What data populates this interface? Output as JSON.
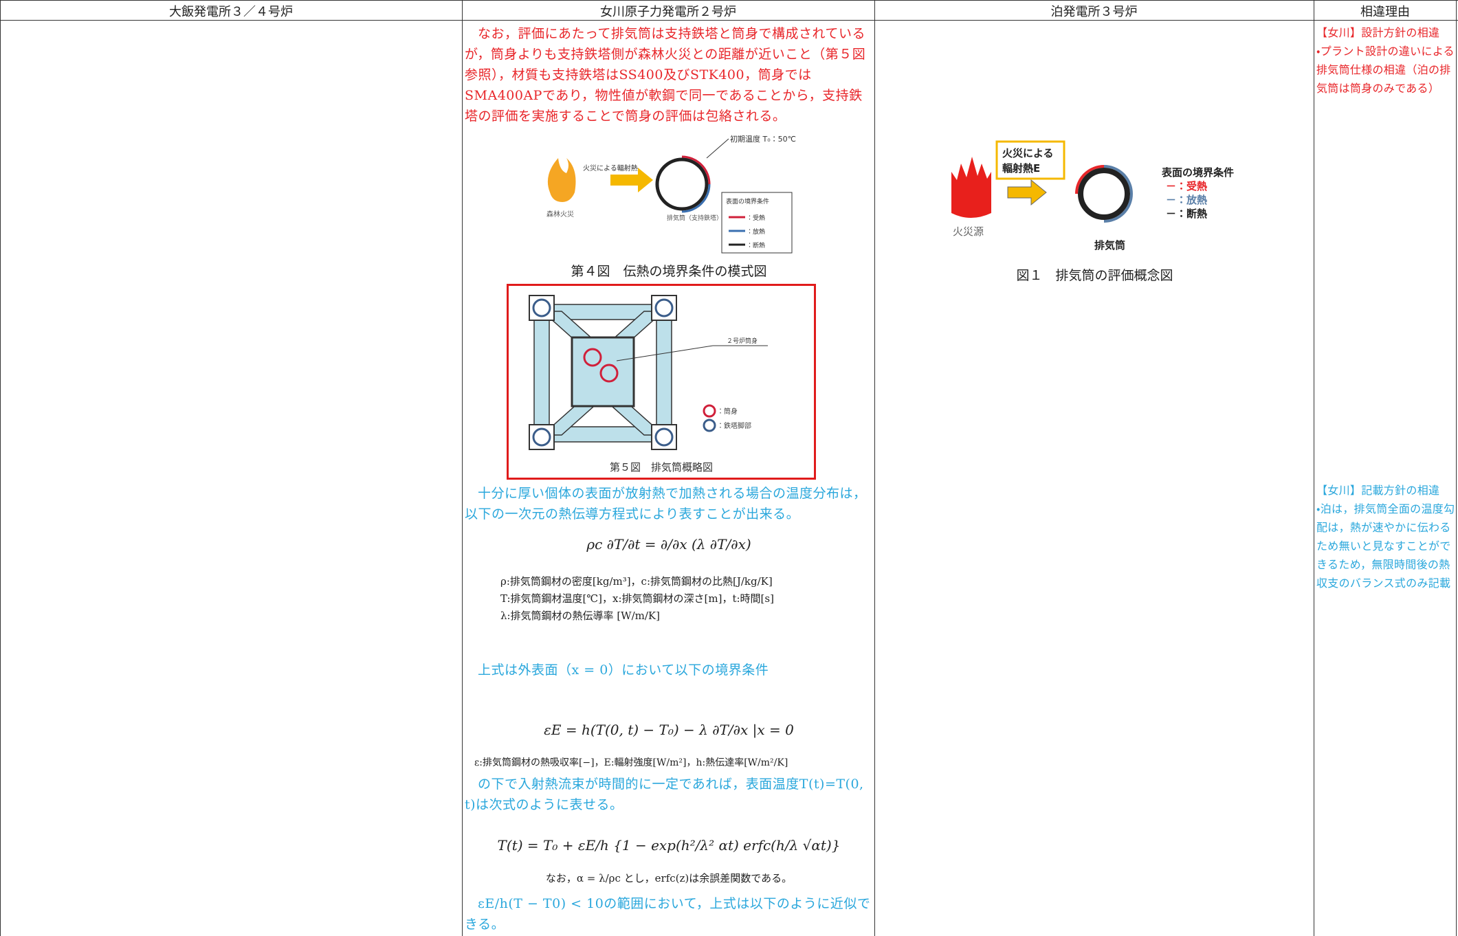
{
  "table": {
    "headers": [
      "大飯発電所３／４号炉",
      "女川原子力発電所２号炉",
      "泊発電所３号炉",
      "相違理由"
    ]
  },
  "onagawa": {
    "paragraph_1": "なお，評価にあたって排気筒は支持鉄塔と筒身で構成されているが，筒身よりも支持鉄塔側が森林火災との距離が近いこと（第５図参照），材質も支持鉄塔はSS400及びSTK400，筒身ではSMA400APであり，物性値が軟鋼で同一であることから，支持鉄塔の評価を実施することで筒身の評価は包絡される。",
    "figure_4": {
      "heat_label": "火災による輻射熱",
      "initial_temp": "初期温度 T₀：50℃",
      "fire_label": "森林火災",
      "stack_label": "排気筒（支持鉄塔）",
      "legend_title": "表面の境界条件",
      "legend": [
        "：受熱",
        "：放熱",
        "：断熱"
      ],
      "caption": "第４図　伝熱の境界条件の模式図"
    },
    "figure_5": {
      "stack_label": "２号炉筒身",
      "legend": [
        "：筒身",
        "：鉄塔脚部"
      ],
      "caption": "第５図　排気筒概略図"
    },
    "paragraph_2": "十分に厚い個体の表面が放射熱で加熱される場合の温度分布は，以下の一次元の熱伝導方程式により表すことが出来る。",
    "equation_1": "ρc ∂T/∂t = ∂/∂x (λ ∂T/∂x)",
    "definitions_1": [
      "ρ:排気筒鋼材の密度[kg/m³]，c:排気筒鋼材の比熱[J/kg/K]",
      "T:排気筒鋼材温度[℃]，x:排気筒鋼材の深さ[m]，t:時間[s]",
      "λ:排気筒鋼材の熱伝導率 [W/m/K]"
    ],
    "paragraph_3": "上式は外表面（x = 0）において以下の境界条件",
    "equation_2": "εE = h(T(0, t) − T₀) − λ ∂T/∂x |x = 0",
    "definitions_2": "ε:排気筒鋼材の熱吸収率[−]，E:輻射強度[W/m²]，h:熱伝達率[W/m²/K]",
    "paragraph_4": "の下で入射熱流束が時間的に一定であれば，表面温度T(t)=T(0, t)は次式のように表せる。",
    "equation_3": "T(t) = T₀ + εE/h {1 − exp(h²/λ² αt) erfc(h/λ √αt)}",
    "note": "なお，α = λ/ρc とし，erfc(z)は余誤差関数である。",
    "paragraph_5": "εE/h(T − T0) < 10の範囲において，上式は以下のように近似できる。"
  },
  "tomari": {
    "figure_1": {
      "heat_label": [
        "火災による",
        "輻射熱E"
      ],
      "legend_title": "表面の境界条件",
      "legend": [
        "－：受熱",
        "－：放熱",
        "－：断熱"
      ],
      "fire_label": "火災源",
      "stack_label": "排気筒",
      "caption": "図１　排気筒の評価概念図"
    }
  },
  "reasons": {
    "item_1": {
      "title": "【女川】設計方針の相違",
      "text": "・プラント設計の違いによる排気筒仕様の相違（泊の排気筒は筒身のみである）"
    },
    "item_2": {
      "title": "【女川】記載方針の相違",
      "text": "・泊は，排気筒全面の温度勾配は，熱が速やかに伝わるため無いと見なすことができるため，無限時間後の熱収支のバランス式のみ記載"
    }
  }
}
